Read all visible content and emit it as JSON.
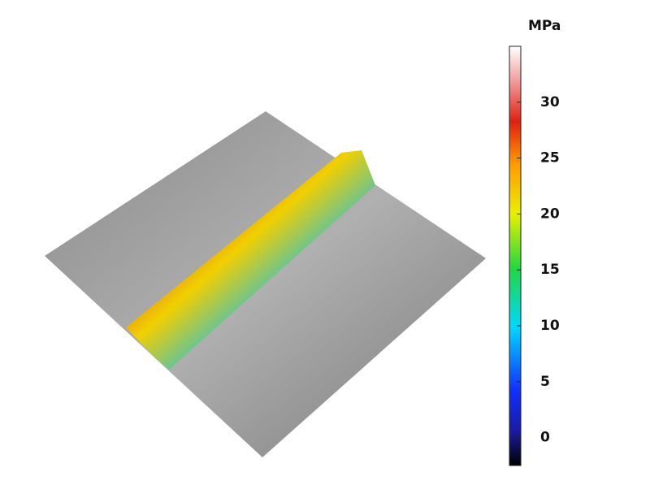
{
  "colorbar": {
    "label": "MPa",
    "lim": [
      -2.5,
      35
    ],
    "ticks": [
      0,
      5,
      10,
      15,
      20,
      25,
      30
    ]
  }
}
